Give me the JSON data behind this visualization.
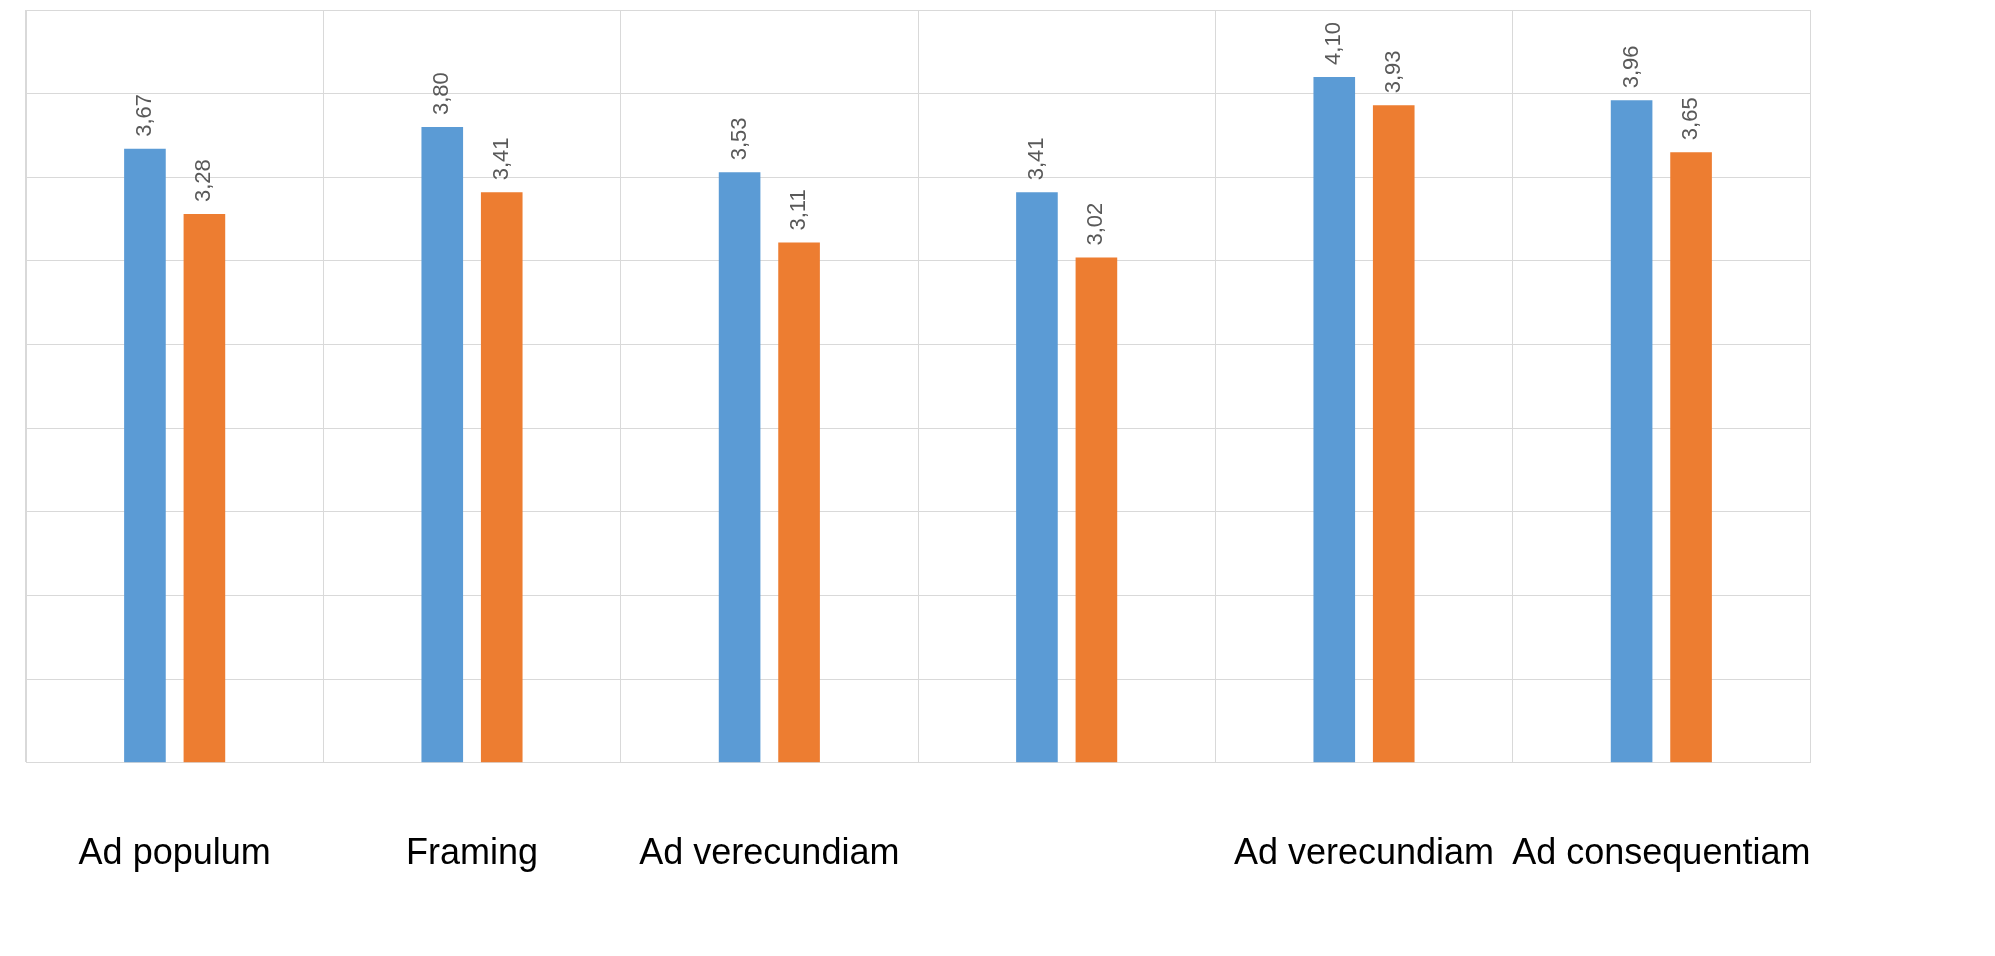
{
  "chart_data": {
    "type": "bar",
    "categories": [
      "Ad populum",
      "Framing",
      "Ad verecundiam",
      null,
      "Ad verecundiam",
      "Ad consequentiam"
    ],
    "series": [
      {
        "color": "#5b9bd5",
        "values": [
          3.67,
          3.8,
          3.53,
          3.41,
          4.1,
          3.96
        ],
        "value_labels": [
          "3,67",
          "3,80",
          "3,53",
          "3,41",
          "4,10",
          "3,96"
        ]
      },
      {
        "color": "#ed7d31",
        "values": [
          3.28,
          3.41,
          3.11,
          3.02,
          3.93,
          3.65
        ],
        "value_labels": [
          "3,28",
          "3,41",
          "3,11",
          "3,02",
          "3,93",
          "3,65"
        ]
      }
    ],
    "tick_labels": "x",
    "grid": true
  }
}
